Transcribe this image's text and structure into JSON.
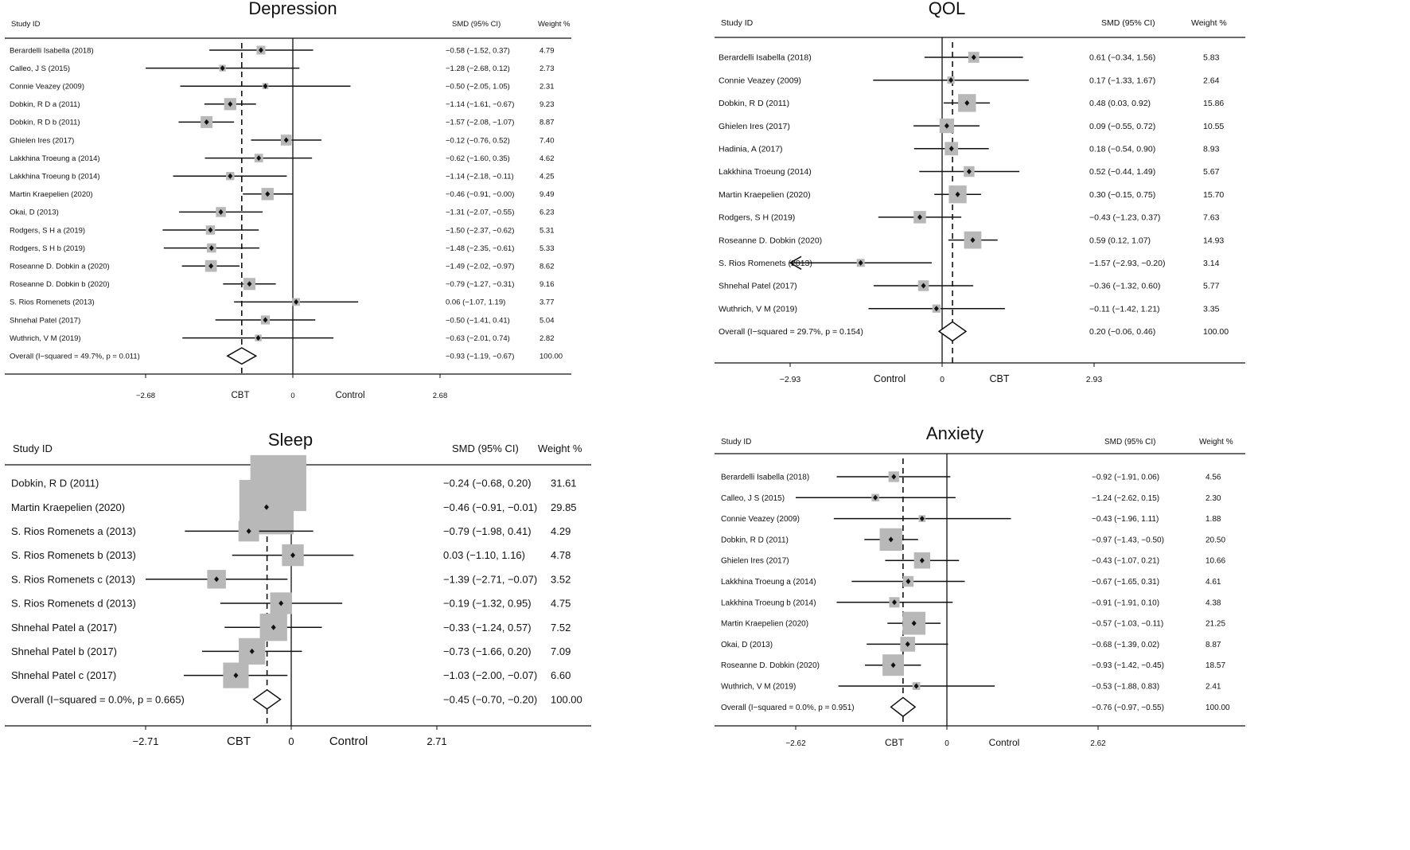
{
  "chart_data": [
    {
      "type": "forest",
      "title": "Depression",
      "headers": {
        "study": "Study ID",
        "smd": "SMD (95% CI)",
        "weight": "Weight %"
      },
      "axis": {
        "range": [
          -2.68,
          2.68
        ],
        "ticks": [
          "−2.68",
          "0",
          "2.68"
        ],
        "left_label": "CBT",
        "right_label": "Control"
      },
      "pooled_estimate": -0.93,
      "studies": [
        {
          "name": "Berardelli Isabella (2018)",
          "smd": -0.58,
          "lo": -1.52,
          "hi": 0.37,
          "ci_text": "−0.58 (−1.52, 0.37)",
          "weight": "4.79"
        },
        {
          "name": "Calleo, J S (2015)",
          "smd": -1.28,
          "lo": -2.68,
          "hi": 0.12,
          "ci_text": "−1.28 (−2.68, 0.12)",
          "weight": "2.73"
        },
        {
          "name": "Connie Veazey (2009)",
          "smd": -0.5,
          "lo": -2.05,
          "hi": 1.05,
          "ci_text": "−0.50 (−2.05, 1.05)",
          "weight": "2.31"
        },
        {
          "name": "Dobkin, R D a (2011)",
          "smd": -1.14,
          "lo": -1.61,
          "hi": -0.67,
          "ci_text": "−1.14 (−1.61, −0.67)",
          "weight": "9.23"
        },
        {
          "name": "Dobkin, R D b (2011)",
          "smd": -1.57,
          "lo": -2.08,
          "hi": -1.07,
          "ci_text": "−1.57 (−2.08, −1.07)",
          "weight": "8.87"
        },
        {
          "name": "Ghielen Ires (2017)",
          "smd": -0.12,
          "lo": -0.76,
          "hi": 0.52,
          "ci_text": "−0.12 (−0.76, 0.52)",
          "weight": "7.40"
        },
        {
          "name": "Lakkhina Troeung a (2014)",
          "smd": -0.62,
          "lo": -1.6,
          "hi": 0.35,
          "ci_text": "−0.62 (−1.60, 0.35)",
          "weight": "4.62"
        },
        {
          "name": "Lakkhina Troeung b (2014)",
          "smd": -1.14,
          "lo": -2.18,
          "hi": -0.11,
          "ci_text": "−1.14 (−2.18, −0.11)",
          "weight": "4.25"
        },
        {
          "name": "Martin Kraepelien (2020)",
          "smd": -0.46,
          "lo": -0.91,
          "hi": -0.0,
          "ci_text": "−0.46 (−0.91, −0.00)",
          "weight": "9.49"
        },
        {
          "name": "Okai, D (2013)",
          "smd": -1.31,
          "lo": -2.07,
          "hi": -0.55,
          "ci_text": "−1.31 (−2.07, −0.55)",
          "weight": "6.23"
        },
        {
          "name": "Rodgers, S H a (2019)",
          "smd": -1.5,
          "lo": -2.37,
          "hi": -0.62,
          "ci_text": "−1.50 (−2.37, −0.62)",
          "weight": "5.31"
        },
        {
          "name": "Rodgers, S H b (2019)",
          "smd": -1.48,
          "lo": -2.35,
          "hi": -0.61,
          "ci_text": "−1.48 (−2.35, −0.61)",
          "weight": "5.33"
        },
        {
          "name": "Roseanne D. Dobkin a (2020)",
          "smd": -1.49,
          "lo": -2.02,
          "hi": -0.97,
          "ci_text": "−1.49 (−2.02, −0.97)",
          "weight": "8.62"
        },
        {
          "name": "Roseanne D. Dobkin b (2020)",
          "smd": -0.79,
          "lo": -1.27,
          "hi": -0.31,
          "ci_text": "−0.79 (−1.27, −0.31)",
          "weight": "9.16"
        },
        {
          "name": "S. Rios Romenets (2013)",
          "smd": 0.06,
          "lo": -1.07,
          "hi": 1.19,
          "ci_text": "0.06 (−1.07, 1.19)",
          "weight": "3.77"
        },
        {
          "name": "Shnehal Patel (2017)",
          "smd": -0.5,
          "lo": -1.41,
          "hi": 0.41,
          "ci_text": "−0.50 (−1.41, 0.41)",
          "weight": "5.04"
        },
        {
          "name": "Wuthrich, V M (2019)",
          "smd": -0.63,
          "lo": -2.01,
          "hi": 0.74,
          "ci_text": "−0.63 (−2.01, 0.74)",
          "weight": "2.82"
        }
      ],
      "overall": {
        "label": "Overall  (I−squared = 49.7%, p = 0.011)",
        "smd": -0.93,
        "lo": -1.19,
        "hi": -0.67,
        "ci_text": "−0.93 (−1.19, −0.67)",
        "weight": "100.00"
      }
    },
    {
      "type": "forest",
      "title": "QOL",
      "headers": {
        "study": "Study  ID",
        "smd": "SMD (95% CI)",
        "weight": "Weight %"
      },
      "axis": {
        "range": [
          -2.93,
          2.93
        ],
        "ticks": [
          "−2.93",
          "0",
          "2.93"
        ],
        "left_label": "Control",
        "right_label": "CBT"
      },
      "pooled_estimate": 0.2,
      "studies": [
        {
          "name": "Berardelli Isabella  (2018)",
          "smd": 0.61,
          "lo": -0.34,
          "hi": 1.56,
          "ci_text": "0.61 (−0.34, 1.56)",
          "weight": "5.83"
        },
        {
          "name": "Connie Veazey  (2009)",
          "smd": 0.17,
          "lo": -1.33,
          "hi": 1.67,
          "ci_text": "0.17 (−1.33, 1.67)",
          "weight": "2.64"
        },
        {
          "name": "Dobkin, R D  (2011)",
          "smd": 0.48,
          "lo": 0.03,
          "hi": 0.92,
          "ci_text": "0.48 (0.03, 0.92)",
          "weight": "15.86"
        },
        {
          "name": "Ghielen Ires  (2017)",
          "smd": 0.09,
          "lo": -0.55,
          "hi": 0.72,
          "ci_text": "0.09 (−0.55, 0.72)",
          "weight": "10.55"
        },
        {
          "name": "Hadinia, A  (2017)",
          "smd": 0.18,
          "lo": -0.54,
          "hi": 0.9,
          "ci_text": "0.18 (−0.54, 0.90)",
          "weight": "8.93"
        },
        {
          "name": "Lakkhina Troeung  (2014)",
          "smd": 0.52,
          "lo": -0.44,
          "hi": 1.49,
          "ci_text": "0.52 (−0.44, 1.49)",
          "weight": "5.67"
        },
        {
          "name": "Martin Kraepelien  (2020)",
          "smd": 0.3,
          "lo": -0.15,
          "hi": 0.75,
          "ci_text": "0.30 (−0.15, 0.75)",
          "weight": "15.70"
        },
        {
          "name": "Rodgers, S H  (2019)",
          "smd": -0.43,
          "lo": -1.23,
          "hi": 0.37,
          "ci_text": "−0.43 (−1.23, 0.37)",
          "weight": "7.63"
        },
        {
          "name": "Roseanne D. Dobkin  (2020)",
          "smd": 0.59,
          "lo": 0.12,
          "hi": 1.07,
          "ci_text": "0.59 (0.12, 1.07)",
          "weight": "14.93"
        },
        {
          "name": "S. Rios Romenets  (2013)",
          "smd": -1.57,
          "lo": -2.93,
          "hi": -0.2,
          "ci_text": "−1.57 (−2.93, −0.20)",
          "weight": "3.14",
          "arrow_left": true
        },
        {
          "name": "Shnehal Patel  (2017)",
          "smd": -0.36,
          "lo": -1.32,
          "hi": 0.6,
          "ci_text": "−0.36 (−1.32, 0.60)",
          "weight": "5.77"
        },
        {
          "name": "Wuthrich, V M  (2019)",
          "smd": -0.11,
          "lo": -1.42,
          "hi": 1.21,
          "ci_text": "−0.11 (−1.42, 1.21)",
          "weight": "3.35"
        }
      ],
      "overall": {
        "label": "Overall  (I−squared = 29.7%, p = 0.154)",
        "smd": 0.2,
        "lo": -0.06,
        "hi": 0.46,
        "ci_text": "0.20 (−0.06, 0.46)",
        "weight": "100.00"
      }
    },
    {
      "type": "forest",
      "title": "Sleep",
      "headers": {
        "study": "Study ID",
        "smd": "SMD (95% CI)",
        "weight": "Weight  %"
      },
      "axis": {
        "range": [
          -2.71,
          2.71
        ],
        "ticks": [
          "−2.71",
          "0",
          "2.71"
        ],
        "left_label": "CBT",
        "right_label": "Control"
      },
      "pooled_estimate": -0.45,
      "studies": [
        {
          "name": "Dobkin, R D  (2011)",
          "smd": -0.24,
          "lo": -0.68,
          "hi": 0.2,
          "ci_text": "−0.24 (−0.68, 0.20)",
          "weight": "31.61"
        },
        {
          "name": "Martin Kraepelien  (2020)",
          "smd": -0.46,
          "lo": -0.91,
          "hi": -0.01,
          "ci_text": "−0.46 (−0.91, −0.01)",
          "weight": "29.85"
        },
        {
          "name": "S. Rios Romenets a (2013)",
          "smd": -0.79,
          "lo": -1.98,
          "hi": 0.41,
          "ci_text": "−0.79 (−1.98, 0.41)",
          "weight": "4.29"
        },
        {
          "name": "S. Rios Romenets b (2013)",
          "smd": 0.03,
          "lo": -1.1,
          "hi": 1.16,
          "ci_text": "0.03 (−1.10, 1.16)",
          "weight": "4.78"
        },
        {
          "name": "S. Rios Romenets c (2013)",
          "smd": -1.39,
          "lo": -2.71,
          "hi": -0.07,
          "ci_text": "−1.39 (−2.71, −0.07)",
          "weight": "3.52"
        },
        {
          "name": "S. Rios Romenets d (2013)",
          "smd": -0.19,
          "lo": -1.32,
          "hi": 0.95,
          "ci_text": "−0.19 (−1.32, 0.95)",
          "weight": "4.75"
        },
        {
          "name": "Shnehal Patel a (2017)",
          "smd": -0.33,
          "lo": -1.24,
          "hi": 0.57,
          "ci_text": "−0.33 (−1.24, 0.57)",
          "weight": "7.52"
        },
        {
          "name": "Shnehal Patel b (2017)",
          "smd": -0.73,
          "lo": -1.66,
          "hi": 0.2,
          "ci_text": "−0.73 (−1.66, 0.20)",
          "weight": "7.09"
        },
        {
          "name": "Shnehal Patel c (2017)",
          "smd": -1.03,
          "lo": -2.0,
          "hi": -0.07,
          "ci_text": "−1.03 (−2.00, −0.07)",
          "weight": "6.60"
        }
      ],
      "overall": {
        "label": "Overall  (I−squared = 0.0%, p = 0.665)",
        "smd": -0.45,
        "lo": -0.7,
        "hi": -0.2,
        "ci_text": "−0.45 (−0.70, −0.20)",
        "weight": "100.00"
      }
    },
    {
      "type": "forest",
      "title": "Anxiety",
      "headers": {
        "study": "Study ID",
        "smd": "SMD (95% CI)",
        "weight": "Weight %"
      },
      "axis": {
        "range": [
          -2.62,
          2.62
        ],
        "ticks": [
          "−2.62",
          "0",
          "2.62"
        ],
        "left_label": "CBT",
        "right_label": "Control"
      },
      "pooled_estimate": -0.76,
      "studies": [
        {
          "name": "Berardelli Isabella  (2018)",
          "smd": -0.92,
          "lo": -1.91,
          "hi": 0.06,
          "ci_text": "−0.92 (−1.91, 0.06)",
          "weight": "4.56"
        },
        {
          "name": "Calleo, J S  (2015)",
          "smd": -1.24,
          "lo": -2.62,
          "hi": 0.15,
          "ci_text": "−1.24 (−2.62, 0.15)",
          "weight": "2.30"
        },
        {
          "name": "Connie Veazey  (2009)",
          "smd": -0.43,
          "lo": -1.96,
          "hi": 1.11,
          "ci_text": "−0.43 (−1.96, 1.11)",
          "weight": "1.88"
        },
        {
          "name": "Dobkin, R D  (2011)",
          "smd": -0.97,
          "lo": -1.43,
          "hi": -0.5,
          "ci_text": "−0.97 (−1.43, −0.50)",
          "weight": "20.50"
        },
        {
          "name": "Ghielen Ires  (2017)",
          "smd": -0.43,
          "lo": -1.07,
          "hi": 0.21,
          "ci_text": "−0.43 (−1.07, 0.21)",
          "weight": "10.66"
        },
        {
          "name": "Lakkhina Troeung a (2014)",
          "smd": -0.67,
          "lo": -1.65,
          "hi": 0.31,
          "ci_text": "−0.67 (−1.65, 0.31)",
          "weight": "4.61"
        },
        {
          "name": "Lakkhina Troeung b (2014)",
          "smd": -0.91,
          "lo": -1.91,
          "hi": 0.1,
          "ci_text": "−0.91 (−1.91, 0.10)",
          "weight": "4.38"
        },
        {
          "name": "Martin Kraepelien  (2020)",
          "smd": -0.57,
          "lo": -1.03,
          "hi": -0.11,
          "ci_text": "−0.57 (−1.03, −0.11)",
          "weight": "21.25"
        },
        {
          "name": "Okai, D  (2013)",
          "smd": -0.68,
          "lo": -1.39,
          "hi": 0.02,
          "ci_text": "−0.68 (−1.39, 0.02)",
          "weight": "8.87"
        },
        {
          "name": "Roseanne D. Dobkin  (2020)",
          "smd": -0.93,
          "lo": -1.42,
          "hi": -0.45,
          "ci_text": "−0.93 (−1.42, −0.45)",
          "weight": "18.57"
        },
        {
          "name": "Wuthrich, V M  (2019)",
          "smd": -0.53,
          "lo": -1.88,
          "hi": 0.83,
          "ci_text": "−0.53 (−1.88, 0.83)",
          "weight": "2.41"
        }
      ],
      "overall": {
        "label": "Overall  (I−squared = 0.0%, p = 0.951)",
        "smd": -0.76,
        "lo": -0.97,
        "hi": -0.55,
        "ci_text": "−0.76 (−0.97, −0.55)",
        "weight": "100.00"
      }
    }
  ]
}
